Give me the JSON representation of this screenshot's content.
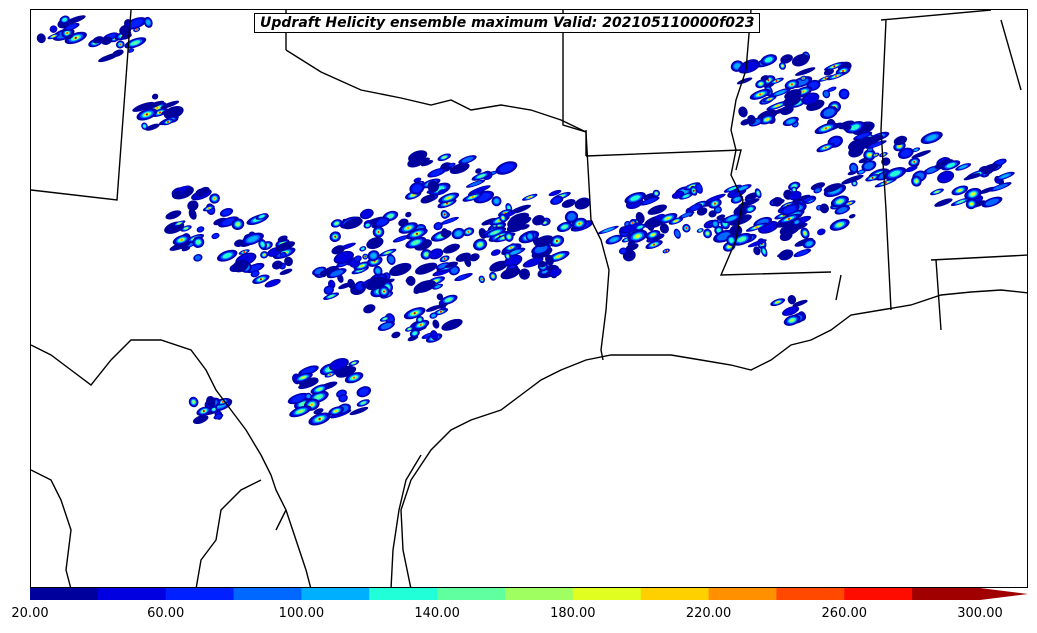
{
  "title": "Updraft Helicity ensemble maximum Valid: 202105110000f023",
  "colorbar": {
    "min": 20,
    "max": 300,
    "step": 20,
    "extend": "max",
    "colors": [
      "#00009c",
      "#0000e0",
      "#0020ff",
      "#0068ff",
      "#00b0ff",
      "#20ffd8",
      "#60ffa0",
      "#a0ff60",
      "#e0ff20",
      "#ffd000",
      "#ff9000",
      "#ff4800",
      "#ff0c00",
      "#a00000"
    ],
    "tick_values": [
      20,
      60,
      100,
      140,
      180,
      220,
      260,
      300
    ],
    "tick_labels": [
      "20.00",
      "60.00",
      "100.00",
      "140.00",
      "180.00",
      "220.00",
      "260.00",
      "300.00"
    ]
  }
}
